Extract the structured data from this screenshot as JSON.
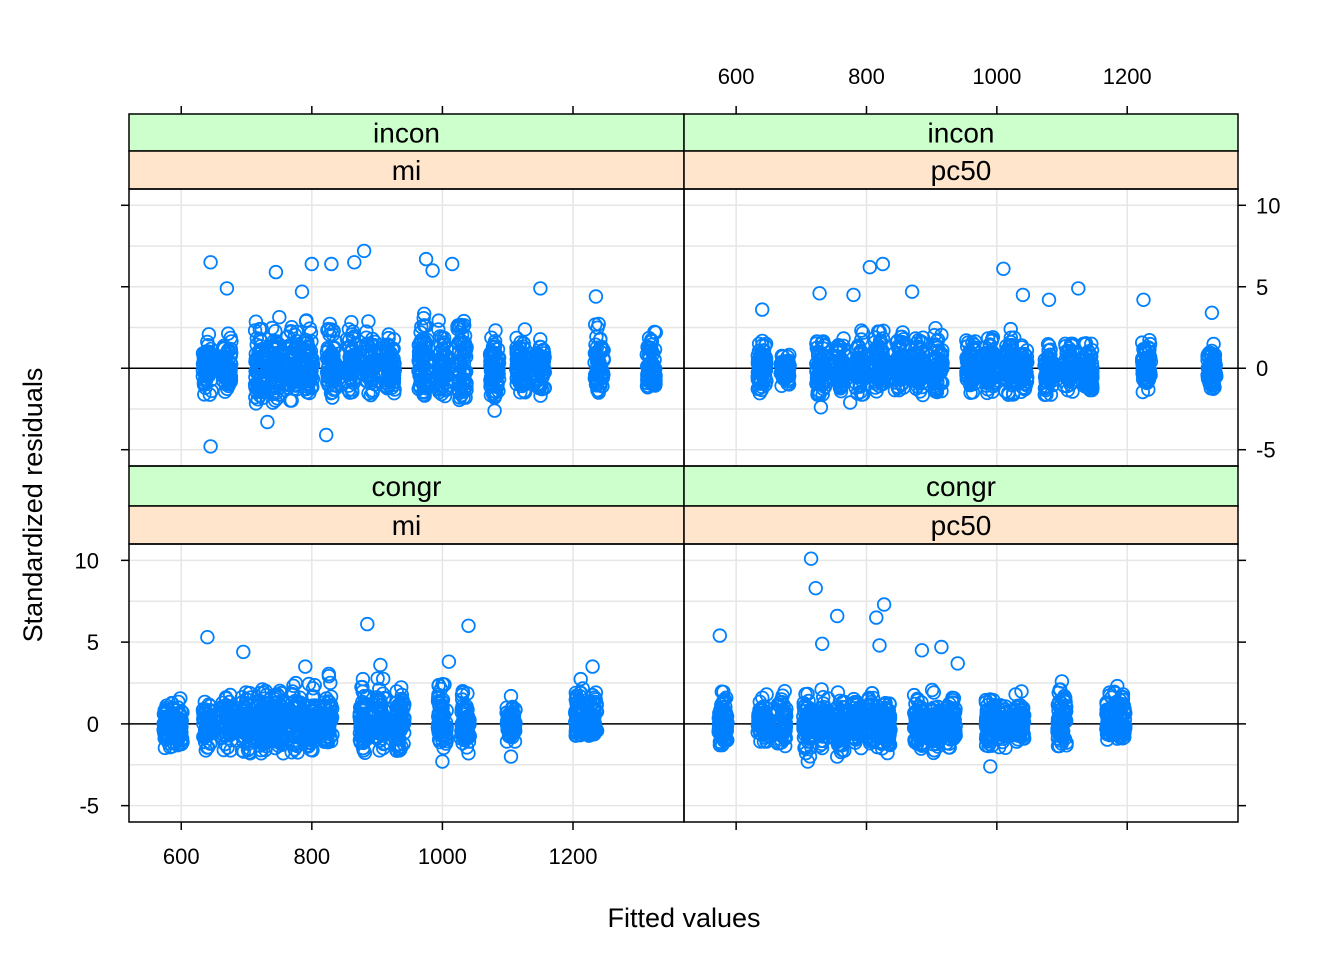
{
  "chart_data": {
    "type": "scatter",
    "style": "lattice residual plot",
    "xlabel": "Fitted values",
    "ylabel": "Standardized residuals",
    "xlim": [
      520,
      1370
    ],
    "ylim": [
      -6.0,
      11.0
    ],
    "x_ticks": [
      600,
      800,
      1000,
      1200
    ],
    "x_tick_labels": [
      "600",
      "800",
      "1000",
      "1200"
    ],
    "y_ticks": [
      -5,
      0,
      5,
      10
    ],
    "y_tick_labels": [
      "-5",
      "0",
      "5",
      "10"
    ],
    "reference_line_y": 0,
    "grid": true,
    "colors": {
      "points": "#0080ff",
      "strip_top": "#ccffcc",
      "strip_bottom": "#ffe5cc",
      "grid": "#e6e6e6"
    },
    "panels": [
      {
        "id": "incon-mi",
        "row": "top",
        "col": "left",
        "strip_top": "incon",
        "strip_bottom": "mi",
        "clusters": [
          {
            "x": 640,
            "lo": -1.8,
            "hi": 2.2
          },
          {
            "x": 670,
            "lo": -1.6,
            "hi": 2.2
          },
          {
            "x": 720,
            "lo": -2.4,
            "hi": 3.2
          },
          {
            "x": 745,
            "lo": -2.2,
            "hi": 3.5
          },
          {
            "x": 770,
            "lo": -2.2,
            "hi": 3.2
          },
          {
            "x": 795,
            "lo": -2.0,
            "hi": 3.0
          },
          {
            "x": 830,
            "lo": -2.0,
            "hi": 3.2
          },
          {
            "x": 860,
            "lo": -1.8,
            "hi": 3.0
          },
          {
            "x": 890,
            "lo": -1.8,
            "hi": 3.0
          },
          {
            "x": 920,
            "lo": -1.8,
            "hi": 3.2
          },
          {
            "x": 970,
            "lo": -2.0,
            "hi": 3.5
          },
          {
            "x": 1000,
            "lo": -2.0,
            "hi": 3.5
          },
          {
            "x": 1030,
            "lo": -2.0,
            "hi": 3.5
          },
          {
            "x": 1080,
            "lo": -2.0,
            "hi": 2.5
          },
          {
            "x": 1120,
            "lo": -1.8,
            "hi": 2.5
          },
          {
            "x": 1150,
            "lo": -1.8,
            "hi": 2.2
          },
          {
            "x": 1240,
            "lo": -1.8,
            "hi": 2.8
          },
          {
            "x": 1320,
            "lo": -1.5,
            "hi": 2.5
          }
        ],
        "outliers": [
          {
            "x": 645,
            "y": 6.5
          },
          {
            "x": 645,
            "y": -4.8
          },
          {
            "x": 670,
            "y": 4.9
          },
          {
            "x": 745,
            "y": 5.9
          },
          {
            "x": 800,
            "y": 6.4
          },
          {
            "x": 830,
            "y": 6.4
          },
          {
            "x": 865,
            "y": 6.5
          },
          {
            "x": 880,
            "y": 7.2
          },
          {
            "x": 975,
            "y": 6.7
          },
          {
            "x": 985,
            "y": 6.0
          },
          {
            "x": 1015,
            "y": 6.4
          },
          {
            "x": 822,
            "y": -4.1
          },
          {
            "x": 732,
            "y": -3.3
          },
          {
            "x": 1150,
            "y": 4.9
          },
          {
            "x": 1235,
            "y": 4.4
          },
          {
            "x": 785,
            "y": 4.7
          },
          {
            "x": 1080,
            "y": -2.6
          }
        ]
      },
      {
        "id": "incon-pc50",
        "row": "top",
        "col": "right",
        "strip_top": "incon",
        "strip_bottom": "pc50",
        "clusters": [
          {
            "x": 640,
            "lo": -1.7,
            "hi": 2.0
          },
          {
            "x": 675,
            "lo": -1.2,
            "hi": 1.0
          },
          {
            "x": 730,
            "lo": -1.8,
            "hi": 2.2
          },
          {
            "x": 760,
            "lo": -1.5,
            "hi": 2.2
          },
          {
            "x": 790,
            "lo": -1.8,
            "hi": 2.5
          },
          {
            "x": 820,
            "lo": -2.0,
            "hi": 3.0
          },
          {
            "x": 850,
            "lo": -1.5,
            "hi": 3.0
          },
          {
            "x": 880,
            "lo": -1.8,
            "hi": 2.5
          },
          {
            "x": 910,
            "lo": -1.8,
            "hi": 2.5
          },
          {
            "x": 960,
            "lo": -1.8,
            "hi": 2.5
          },
          {
            "x": 990,
            "lo": -1.8,
            "hi": 2.5
          },
          {
            "x": 1020,
            "lo": -1.8,
            "hi": 2.5
          },
          {
            "x": 1040,
            "lo": -1.8,
            "hi": 2.0
          },
          {
            "x": 1080,
            "lo": -1.8,
            "hi": 2.0
          },
          {
            "x": 1110,
            "lo": -1.5,
            "hi": 2.0
          },
          {
            "x": 1140,
            "lo": -1.5,
            "hi": 2.0
          },
          {
            "x": 1230,
            "lo": -1.5,
            "hi": 2.5
          },
          {
            "x": 1330,
            "lo": -1.4,
            "hi": 1.8
          }
        ],
        "outliers": [
          {
            "x": 805,
            "y": 6.2
          },
          {
            "x": 825,
            "y": 6.4
          },
          {
            "x": 1010,
            "y": 6.1
          },
          {
            "x": 1125,
            "y": 4.9
          },
          {
            "x": 1225,
            "y": 4.2
          },
          {
            "x": 1330,
            "y": 3.4
          },
          {
            "x": 640,
            "y": 3.6
          },
          {
            "x": 728,
            "y": 4.6
          },
          {
            "x": 780,
            "y": 4.5
          },
          {
            "x": 870,
            "y": 4.7
          },
          {
            "x": 1040,
            "y": 4.5
          },
          {
            "x": 1080,
            "y": 4.2
          },
          {
            "x": 730,
            "y": -2.4
          },
          {
            "x": 775,
            "y": -2.1
          }
        ]
      },
      {
        "id": "congr-mi",
        "row": "bottom",
        "col": "left",
        "strip_top": "congr",
        "strip_bottom": "mi",
        "clusters": [
          {
            "x": 580,
            "lo": -1.8,
            "hi": 1.8
          },
          {
            "x": 595,
            "lo": -1.6,
            "hi": 1.6
          },
          {
            "x": 640,
            "lo": -1.8,
            "hi": 1.8
          },
          {
            "x": 670,
            "lo": -1.8,
            "hi": 2.2
          },
          {
            "x": 700,
            "lo": -2.0,
            "hi": 2.5
          },
          {
            "x": 725,
            "lo": -2.0,
            "hi": 2.8
          },
          {
            "x": 750,
            "lo": -2.0,
            "hi": 2.8
          },
          {
            "x": 775,
            "lo": -2.0,
            "hi": 2.5
          },
          {
            "x": 800,
            "lo": -1.8,
            "hi": 2.5
          },
          {
            "x": 825,
            "lo": -1.8,
            "hi": 3.2
          },
          {
            "x": 880,
            "lo": -1.8,
            "hi": 3.0
          },
          {
            "x": 905,
            "lo": -1.8,
            "hi": 3.0
          },
          {
            "x": 935,
            "lo": -1.8,
            "hi": 2.8
          },
          {
            "x": 1000,
            "lo": -1.6,
            "hi": 2.5
          },
          {
            "x": 1035,
            "lo": -1.6,
            "hi": 2.2
          },
          {
            "x": 1105,
            "lo": -1.2,
            "hi": 1.2
          },
          {
            "x": 1210,
            "lo": -0.8,
            "hi": 2.8
          },
          {
            "x": 1230,
            "lo": -0.8,
            "hi": 2.8
          }
        ],
        "outliers": [
          {
            "x": 640,
            "y": 5.3
          },
          {
            "x": 695,
            "y": 4.4
          },
          {
            "x": 885,
            "y": 6.1
          },
          {
            "x": 1040,
            "y": 6.0
          },
          {
            "x": 1010,
            "y": 3.8
          },
          {
            "x": 1000,
            "y": -2.3
          },
          {
            "x": 1040,
            "y": -1.8
          },
          {
            "x": 1105,
            "y": -2.0
          },
          {
            "x": 1105,
            "y": 1.7
          },
          {
            "x": 1230,
            "y": 3.5
          },
          {
            "x": 790,
            "y": 3.5
          },
          {
            "x": 905,
            "y": 3.6
          }
        ]
      },
      {
        "id": "congr-pc50",
        "row": "bottom",
        "col": "right",
        "strip_top": "congr",
        "strip_bottom": "pc50",
        "clusters": [
          {
            "x": 580,
            "lo": -1.6,
            "hi": 2.2
          },
          {
            "x": 640,
            "lo": -1.2,
            "hi": 1.8
          },
          {
            "x": 670,
            "lo": -1.5,
            "hi": 2.0
          },
          {
            "x": 710,
            "lo": -2.0,
            "hi": 2.2
          },
          {
            "x": 735,
            "lo": -1.8,
            "hi": 2.2
          },
          {
            "x": 760,
            "lo": -1.8,
            "hi": 2.2
          },
          {
            "x": 785,
            "lo": -1.8,
            "hi": 2.2
          },
          {
            "x": 810,
            "lo": -1.8,
            "hi": 2.2
          },
          {
            "x": 830,
            "lo": -1.8,
            "hi": 2.2
          },
          {
            "x": 880,
            "lo": -1.8,
            "hi": 2.2
          },
          {
            "x": 905,
            "lo": -1.8,
            "hi": 2.2
          },
          {
            "x": 930,
            "lo": -1.6,
            "hi": 2.2
          },
          {
            "x": 990,
            "lo": -1.5,
            "hi": 2.0
          },
          {
            "x": 1010,
            "lo": -1.5,
            "hi": 1.8
          },
          {
            "x": 1035,
            "lo": -1.2,
            "hi": 2.0
          },
          {
            "x": 1100,
            "lo": -1.5,
            "hi": 2.8
          },
          {
            "x": 1175,
            "lo": -1.0,
            "hi": 2.0
          },
          {
            "x": 1190,
            "lo": -1.0,
            "hi": 2.4
          }
        ],
        "outliers": [
          {
            "x": 575,
            "y": 5.4
          },
          {
            "x": 715,
            "y": 10.1
          },
          {
            "x": 722,
            "y": 8.3
          },
          {
            "x": 755,
            "y": 6.6
          },
          {
            "x": 827,
            "y": 7.3
          },
          {
            "x": 815,
            "y": 6.5
          },
          {
            "x": 732,
            "y": 4.9
          },
          {
            "x": 820,
            "y": 4.8
          },
          {
            "x": 885,
            "y": 4.5
          },
          {
            "x": 915,
            "y": 4.7
          },
          {
            "x": 940,
            "y": 3.7
          },
          {
            "x": 990,
            "y": -2.6
          },
          {
            "x": 710,
            "y": -2.3
          },
          {
            "x": 755,
            "y": -2.0
          }
        ]
      }
    ]
  }
}
